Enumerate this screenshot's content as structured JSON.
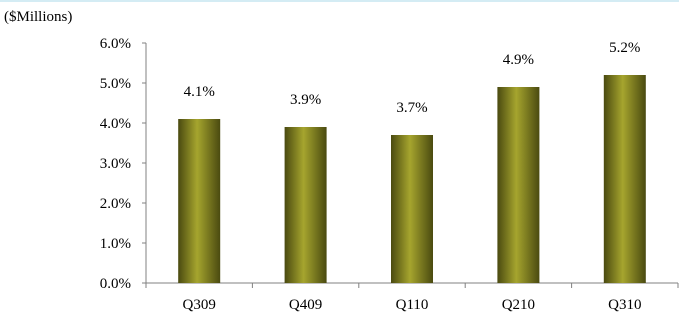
{
  "unit_label": "($Millions)",
  "chart_data": {
    "type": "bar",
    "categories": [
      "Q309",
      "Q409",
      "Q110",
      "Q210",
      "Q310"
    ],
    "values": [
      4.1,
      3.9,
      3.7,
      4.9,
      5.2
    ],
    "data_labels": [
      "4.1%",
      "3.9%",
      "3.7%",
      "4.9%",
      "5.2%"
    ],
    "y_ticks": [
      "0.0%",
      "1.0%",
      "2.0%",
      "3.0%",
      "4.0%",
      "5.0%",
      "6.0%"
    ],
    "ylim": [
      0,
      6
    ],
    "title": "",
    "xlabel": "",
    "ylabel": "",
    "grid": false,
    "legend": "none",
    "colors": {
      "bar_light": "#a6a52e",
      "bar_mid": "#8a8a22",
      "bar_dark": "#4a4a10",
      "axis": "#808080",
      "top_rule": "#d4ecf4"
    }
  }
}
